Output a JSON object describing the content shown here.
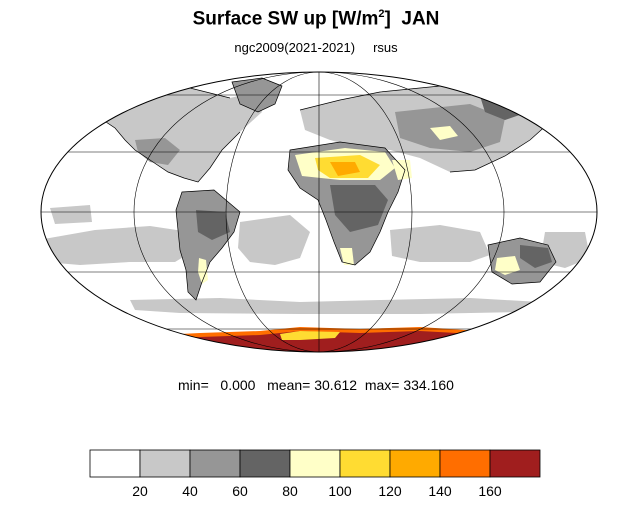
{
  "title": {
    "main": "Surface SW up [W/m",
    "sup": "2",
    "close": "]",
    "month": "JAN"
  },
  "subtitle": {
    "run": "ngc2009(2021-2021)",
    "variable": "rsus"
  },
  "stats": {
    "min_label": "min=",
    "min_value": "0.000",
    "mean_label": "mean=",
    "mean_value": "30.612",
    "max_label": "max=",
    "max_value": "334.160"
  },
  "colorbar": {
    "colors": [
      "#ffffff",
      "#c8c8c8",
      "#969696",
      "#646464",
      "#ffffc8",
      "#ffdc32",
      "#ffaa00",
      "#ff6e00",
      "#a01e1e"
    ],
    "ticks": [
      "20",
      "40",
      "60",
      "80",
      "100",
      "120",
      "140",
      "160"
    ]
  },
  "colors": {
    "light_gray": "#c8c8c8",
    "mid_gray": "#969696",
    "dark_gray": "#646464",
    "pale_yellow": "#ffffc8",
    "yellow": "#ffdc32",
    "orange": "#ffaa00",
    "dark_orange": "#ff6e00",
    "dark_red": "#a01e1e"
  }
}
